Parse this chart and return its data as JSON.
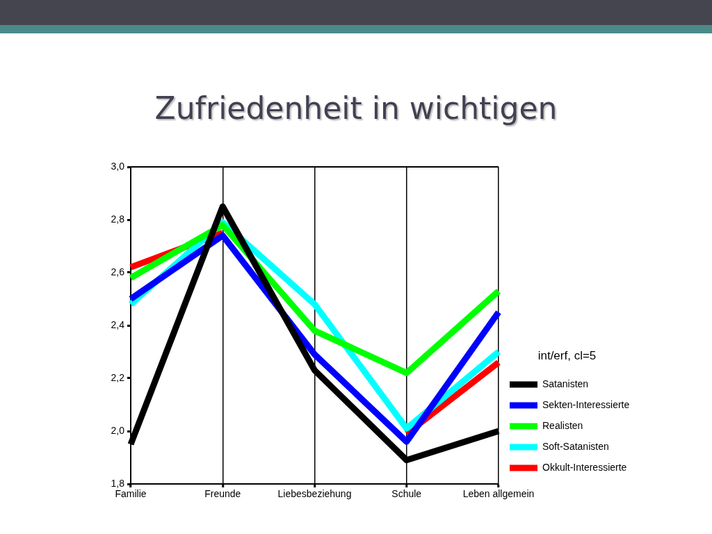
{
  "chart_data": {
    "type": "line",
    "title": "Zufriedenheit in wichtigen",
    "categories": [
      "Familie",
      "Freunde",
      "Liebesbeziehung",
      "Schule",
      "Leben allgemein"
    ],
    "series": [
      {
        "name": "Satanisten",
        "color": "#000000",
        "values": [
          1.95,
          2.85,
          2.23,
          1.89,
          2.0
        ]
      },
      {
        "name": "Sekten-Interessierte",
        "color": "#0000ff",
        "values": [
          2.5,
          2.74,
          2.29,
          1.96,
          2.45
        ]
      },
      {
        "name": "Realisten",
        "color": "#00ff00",
        "values": [
          2.58,
          2.78,
          2.38,
          2.22,
          2.53
        ]
      },
      {
        "name": "Soft-Satanisten",
        "color": "#00ffff",
        "values": [
          2.48,
          2.79,
          2.48,
          2.01,
          2.3
        ]
      },
      {
        "name": "Okkult-Interessierte",
        "color": "#ff0000",
        "values": [
          2.62,
          2.75,
          null,
          1.99,
          2.26
        ]
      }
    ],
    "ylim": [
      1.8,
      3.0
    ],
    "yticks": [
      {
        "value": 1.8,
        "label": "1,8"
      },
      {
        "value": 2.0,
        "label": "2,0"
      },
      {
        "value": 2.2,
        "label": "2,2"
      },
      {
        "value": 2.4,
        "label": "2,4"
      },
      {
        "value": 2.6,
        "label": "2,6"
      },
      {
        "value": 2.8,
        "label": "2,8"
      },
      {
        "value": 3.0,
        "label": "3,0"
      }
    ],
    "legend_title": "int/erf, cl=5",
    "legend": "right",
    "grid": "x",
    "marker": "none"
  }
}
